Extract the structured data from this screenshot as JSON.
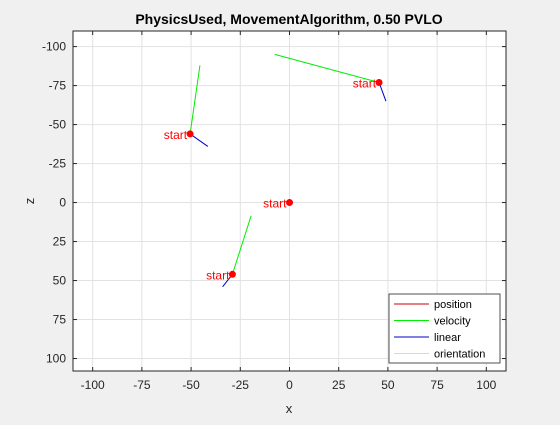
{
  "chart_data": {
    "type": "scatter",
    "title": "PhysicsUsed, MovementAlgorithm, 0.50 PVLO",
    "xlabel": "x",
    "ylabel": "z",
    "xlim": [
      -110,
      110
    ],
    "ylim": [
      -110,
      108
    ],
    "y_reversed": true,
    "grid": true,
    "xticks": [
      -100,
      -75,
      -50,
      -25,
      0,
      25,
      50,
      75,
      100
    ],
    "yticks": [
      -100,
      -75,
      -50,
      -25,
      0,
      25,
      50,
      75,
      100
    ],
    "legend_position": "bottom-right",
    "legend": [
      {
        "name": "position",
        "color": "#cc0000"
      },
      {
        "name": "velocity",
        "color": "#00ee00"
      },
      {
        "name": "linear",
        "color": "#0000cc"
      },
      {
        "name": "orientation",
        "color": "#ffee00"
      }
    ],
    "start_label": "start",
    "agents": [
      {
        "start": [
          -50.5,
          -44
        ],
        "velocity_end": [
          -45.5,
          -88
        ],
        "linear_end": [
          -41.5,
          -36
        ]
      },
      {
        "start": [
          45.5,
          -77
        ],
        "velocity_end": [
          -7.5,
          -95
        ],
        "linear_end": [
          49,
          -65
        ]
      },
      {
        "start": [
          0,
          0
        ],
        "velocity_end": null,
        "linear_end": null
      },
      {
        "start": [
          -29,
          46
        ],
        "velocity_end": [
          -19.5,
          8.5
        ],
        "linear_end": [
          -34,
          54
        ]
      }
    ],
    "colors": {
      "start_marker": "#ff0000",
      "start_text": "#ff0000",
      "velocity": "#00ee00",
      "linear": "#0000cc",
      "grid": "#e2e2e2",
      "axes_bg": "#ffffff",
      "figure_bg": "#f0f0f0"
    }
  }
}
